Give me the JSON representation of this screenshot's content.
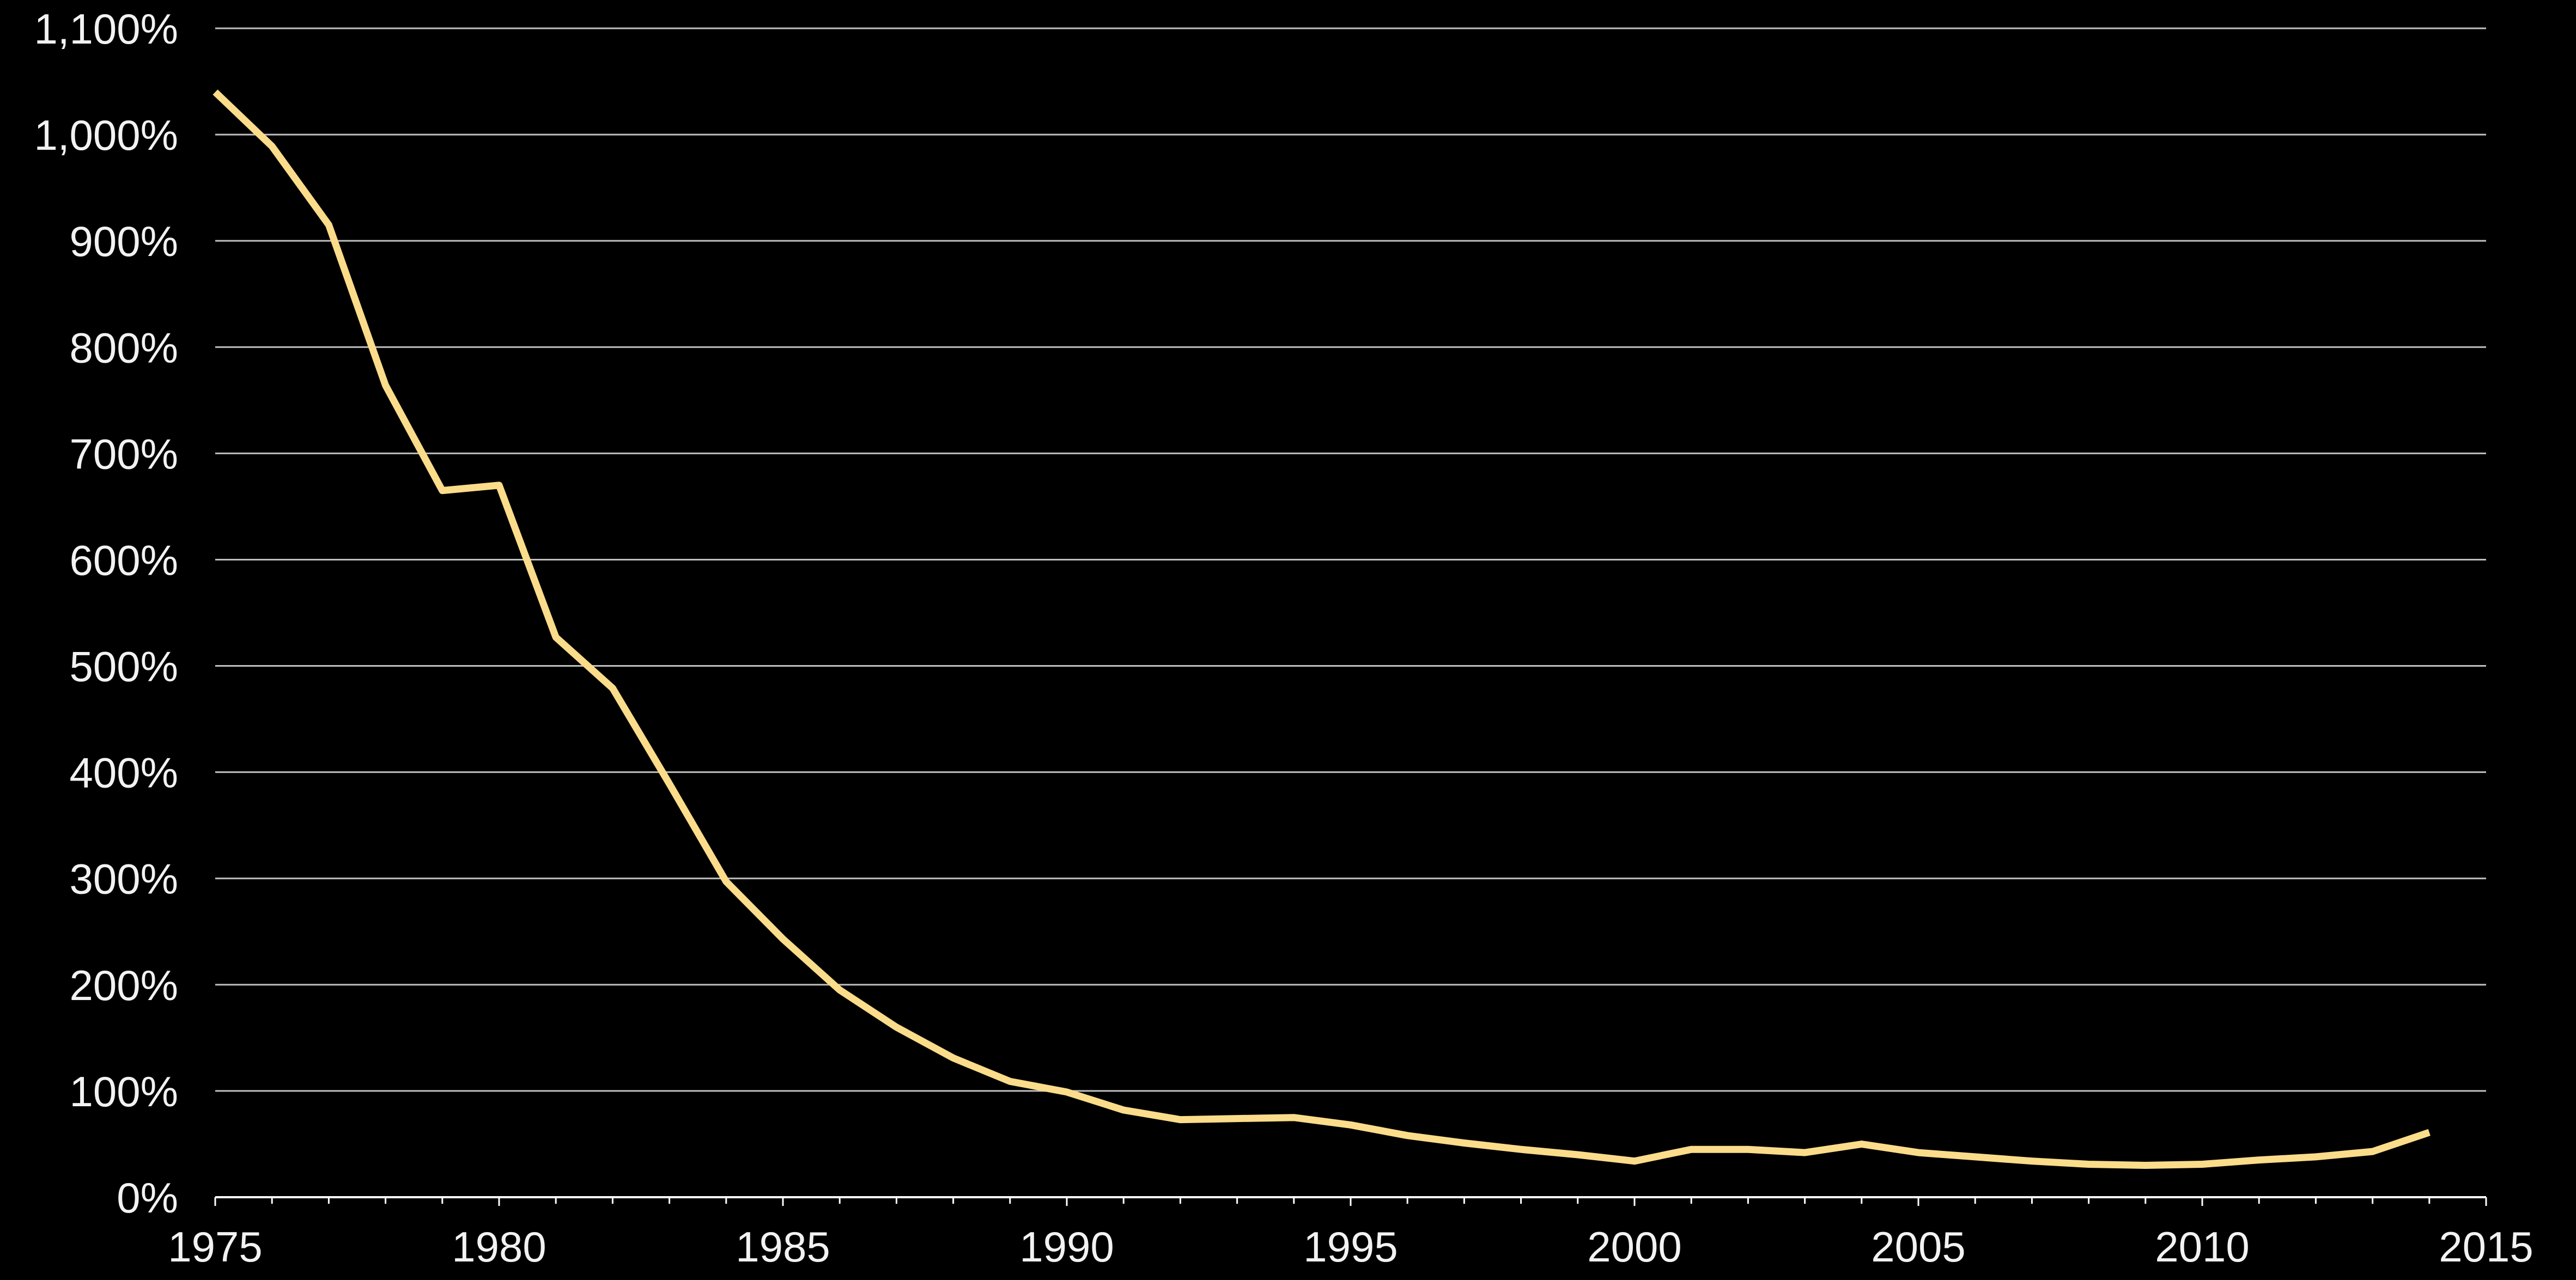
{
  "chart_data": {
    "type": "line",
    "title": "",
    "xlabel": "",
    "ylabel": "",
    "xlim": [
      1975,
      2015
    ],
    "ylim": [
      0,
      1100
    ],
    "x_ticks": [
      1975,
      1980,
      1985,
      1990,
      1995,
      2000,
      2005,
      2010,
      2015
    ],
    "x_tick_labels": [
      "1975",
      "1980",
      "1985",
      "1990",
      "1995",
      "2000",
      "2005",
      "2010",
      "2015"
    ],
    "y_ticks": [
      0,
      100,
      200,
      300,
      400,
      500,
      600,
      700,
      800,
      900,
      1000,
      1100
    ],
    "y_tick_labels": [
      "0%",
      "100%",
      "200%",
      "300%",
      "400%",
      "500%",
      "600%",
      "700%",
      "800%",
      "900%",
      "1,000%",
      "1,100%"
    ],
    "grid": true,
    "legend": "none",
    "colors": {
      "background": "#000000",
      "grid": "#bfbfbf",
      "axis": "#ffffff",
      "line": "#fbdc8a",
      "text": "#f2f2f2"
    },
    "series": [
      {
        "x": [
          1975,
          1976,
          1977,
          1978,
          1979,
          1980,
          1981,
          1982,
          1983,
          1984,
          1985,
          1986,
          1987,
          1988,
          1989,
          1990,
          1991,
          1992,
          1993,
          1994,
          1995,
          1996,
          1997,
          1998,
          1999,
          2000,
          2001,
          2002,
          2003,
          2004,
          2005,
          2006,
          2007,
          2008,
          2009,
          2010,
          2011,
          2012,
          2013,
          2014
        ],
        "values": [
          1040,
          989,
          915,
          764,
          665,
          670,
          527,
          479,
          389,
          297,
          243,
          195,
          160,
          131,
          109,
          99,
          82,
          73,
          74,
          75,
          68,
          58,
          51,
          45,
          40,
          34,
          45,
          45,
          42,
          50,
          42,
          38,
          34,
          31,
          30,
          31,
          35,
          38,
          43,
          61
        ]
      }
    ]
  }
}
